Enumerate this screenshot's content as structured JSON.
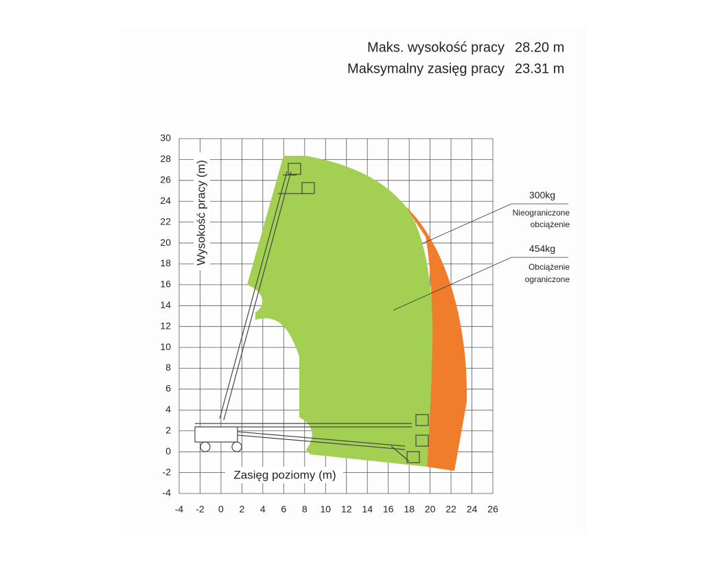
{
  "header": {
    "rows": [
      [
        "Maks. wysokość pracy",
        "28.20 m"
      ],
      [
        "Maksymalny zasięg pracy",
        "23.31 m"
      ]
    ]
  },
  "chart_data": {
    "type": "range",
    "x_label": "Zasięg poziomy (m)",
    "y_label": "Wysokość pracy (m)",
    "xlim": [
      -4,
      26
    ],
    "ylim": [
      -4,
      30
    ],
    "xticks": [
      -4,
      -2,
      0,
      2,
      4,
      6,
      8,
      10,
      12,
      14,
      16,
      18,
      20,
      22,
      24,
      26
    ],
    "yticks": [
      -4,
      -2,
      0,
      2,
      4,
      6,
      8,
      10,
      12,
      14,
      16,
      18,
      20,
      22,
      24,
      26,
      28,
      30
    ],
    "grid": true,
    "legend": [
      {
        "weight": "300kg",
        "lines": [
          "Nieograniczone",
          "obciążenie"
        ],
        "color": "#a3cf52"
      },
      {
        "weight": "454kg",
        "lines": [
          "Obciążenie",
          "ograniczone"
        ],
        "color": "#f07d2b"
      }
    ]
  }
}
